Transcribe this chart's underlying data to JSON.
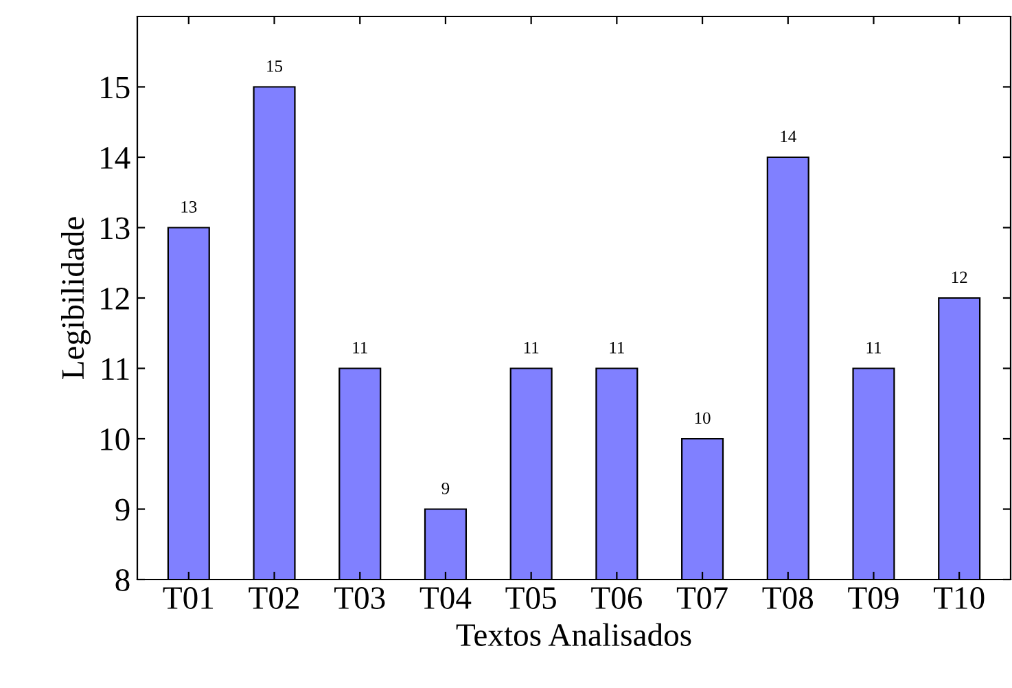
{
  "chart_data": {
    "type": "bar",
    "xlabel": "Textos Analisados",
    "ylabel": "Legibilidade",
    "categories": [
      "T01",
      "T02",
      "T03",
      "T04",
      "T05",
      "T06",
      "T07",
      "T08",
      "T09",
      "T10"
    ],
    "values": [
      13,
      15,
      11,
      9,
      11,
      11,
      10,
      14,
      11,
      12
    ],
    "color": "#8080ff",
    "ylim": [
      8,
      16
    ],
    "yticks": [
      8,
      9,
      10,
      11,
      12,
      13,
      14,
      15
    ],
    "grid": false,
    "data_labels": true
  }
}
